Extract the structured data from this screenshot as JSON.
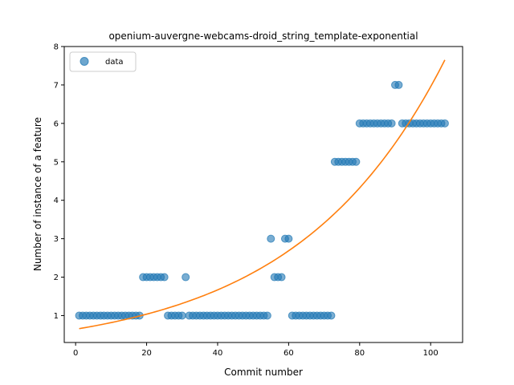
{
  "chart_data": {
    "type": "scatter",
    "title": "openium-auvergne-webcams-droid_string_template-exponential",
    "xlabel": "Commit number",
    "ylabel": "Number of instance of a feature",
    "xlim": [
      -3.2,
      109
    ],
    "ylim": [
      0.3,
      8
    ],
    "xticks": [
      0,
      20,
      40,
      60,
      80,
      100
    ],
    "yticks": [
      1,
      2,
      3,
      4,
      5,
      6,
      7,
      8
    ],
    "grid": false,
    "legend": {
      "placement": "top-left",
      "entries": [
        "data"
      ]
    },
    "series": [
      {
        "name": "data",
        "kind": "points",
        "color": "#1f77b4",
        "points": [
          [
            1,
            1
          ],
          [
            2,
            1
          ],
          [
            3,
            1
          ],
          [
            4,
            1
          ],
          [
            5,
            1
          ],
          [
            6,
            1
          ],
          [
            7,
            1
          ],
          [
            8,
            1
          ],
          [
            9,
            1
          ],
          [
            10,
            1
          ],
          [
            11,
            1
          ],
          [
            12,
            1
          ],
          [
            13,
            1
          ],
          [
            14,
            1
          ],
          [
            15,
            1
          ],
          [
            16,
            1
          ],
          [
            17,
            1
          ],
          [
            18,
            1
          ],
          [
            19,
            2
          ],
          [
            20,
            2
          ],
          [
            21,
            2
          ],
          [
            22,
            2
          ],
          [
            23,
            2
          ],
          [
            24,
            2
          ],
          [
            25,
            2
          ],
          [
            26,
            1
          ],
          [
            27,
            1
          ],
          [
            28,
            1
          ],
          [
            29,
            1
          ],
          [
            30,
            1
          ],
          [
            31,
            2
          ],
          [
            32,
            1
          ],
          [
            33,
            1
          ],
          [
            34,
            1
          ],
          [
            35,
            1
          ],
          [
            36,
            1
          ],
          [
            37,
            1
          ],
          [
            38,
            1
          ],
          [
            39,
            1
          ],
          [
            40,
            1
          ],
          [
            41,
            1
          ],
          [
            42,
            1
          ],
          [
            43,
            1
          ],
          [
            44,
            1
          ],
          [
            45,
            1
          ],
          [
            46,
            1
          ],
          [
            47,
            1
          ],
          [
            48,
            1
          ],
          [
            49,
            1
          ],
          [
            50,
            1
          ],
          [
            51,
            1
          ],
          [
            52,
            1
          ],
          [
            53,
            1
          ],
          [
            54,
            1
          ],
          [
            55,
            3
          ],
          [
            56,
            2
          ],
          [
            57,
            2
          ],
          [
            58,
            2
          ],
          [
            59,
            3
          ],
          [
            60,
            3
          ],
          [
            61,
            1
          ],
          [
            62,
            1
          ],
          [
            63,
            1
          ],
          [
            64,
            1
          ],
          [
            65,
            1
          ],
          [
            66,
            1
          ],
          [
            67,
            1
          ],
          [
            68,
            1
          ],
          [
            69,
            1
          ],
          [
            70,
            1
          ],
          [
            71,
            1
          ],
          [
            72,
            1
          ],
          [
            73,
            5
          ],
          [
            74,
            5
          ],
          [
            75,
            5
          ],
          [
            76,
            5
          ],
          [
            77,
            5
          ],
          [
            78,
            5
          ],
          [
            79,
            5
          ],
          [
            80,
            6
          ],
          [
            81,
            6
          ],
          [
            82,
            6
          ],
          [
            83,
            6
          ],
          [
            84,
            6
          ],
          [
            85,
            6
          ],
          [
            86,
            6
          ],
          [
            87,
            6
          ],
          [
            88,
            6
          ],
          [
            89,
            6
          ],
          [
            90,
            7
          ],
          [
            91,
            7
          ],
          [
            92,
            6
          ],
          [
            93,
            6
          ],
          [
            94,
            6
          ],
          [
            95,
            6
          ],
          [
            96,
            6
          ],
          [
            97,
            6
          ],
          [
            98,
            6
          ],
          [
            99,
            6
          ],
          [
            100,
            6
          ],
          [
            101,
            6
          ],
          [
            102,
            6
          ],
          [
            103,
            6
          ],
          [
            104,
            6
          ]
        ]
      },
      {
        "kind": "curve",
        "color": "#ff7f0e",
        "x_start": 1,
        "x_end": 104,
        "y_start": 0.66,
        "y_end": 7.65
      }
    ]
  }
}
